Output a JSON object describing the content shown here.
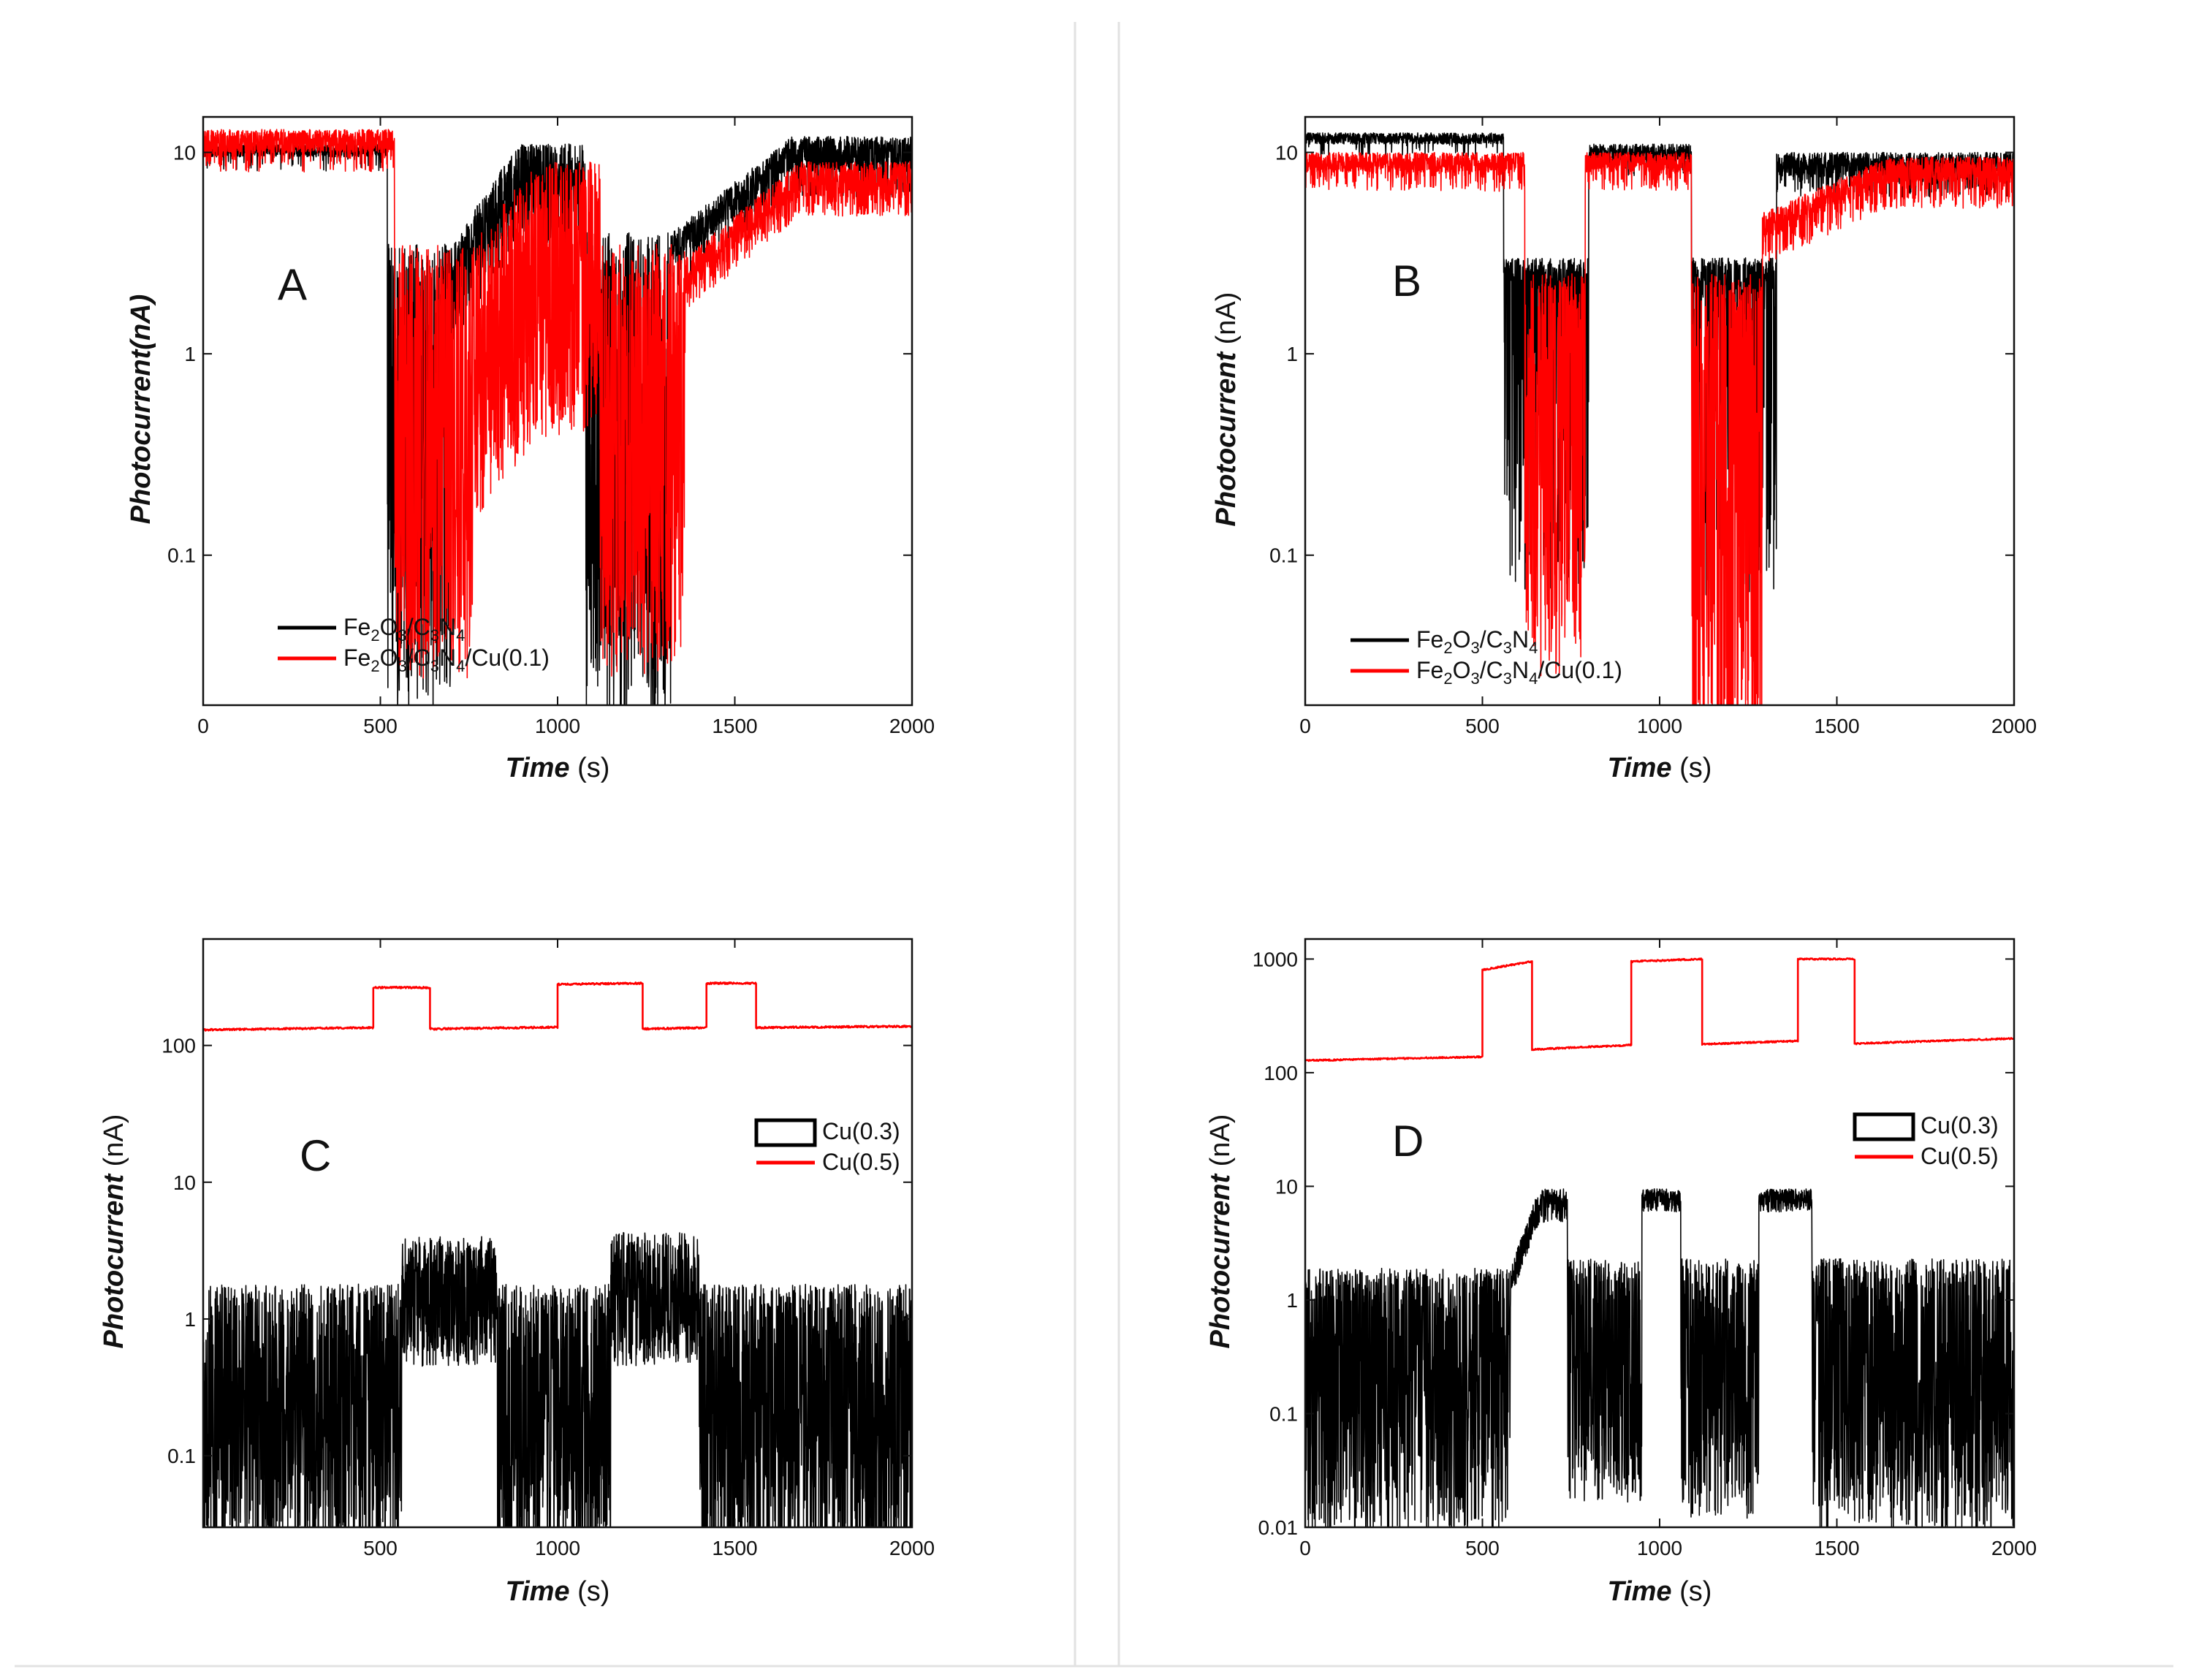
{
  "figure": {
    "panels": [
      "A",
      "B",
      "C",
      "D"
    ]
  },
  "chart_data": [
    {
      "panel": "A",
      "type": "line",
      "title": "",
      "xlabel": "Time",
      "xunit": "(s)",
      "ylabel": "Photocurrent(nA)",
      "yscale": "log",
      "xlim": [
        0,
        2000
      ],
      "ylim": [
        0.018,
        15
      ],
      "xticks": [
        0,
        500,
        1000,
        1500,
        2000
      ],
      "yticks": [
        0.1,
        1,
        10
      ],
      "ytick_labels": [
        "0.1",
        "1",
        "10"
      ],
      "legend_position": "bottom-left",
      "legend": [
        {
          "name": "Fe2O3/C3N4",
          "parts": [
            [
              "Fe",
              ""
            ],
            [
              "2",
              "sub"
            ],
            [
              "O",
              ""
            ],
            [
              "3",
              "sub"
            ],
            [
              "/C",
              ""
            ],
            [
              "3",
              "sub"
            ],
            [
              "N",
              ""
            ],
            [
              "4",
              "sub"
            ]
          ],
          "color": "#000000"
        },
        {
          "name": "Fe2O3/C3N4/Cu(0.1)",
          "parts": [
            [
              "Fe",
              ""
            ],
            [
              "2",
              "sub"
            ],
            [
              "O",
              ""
            ],
            [
              "3",
              "sub"
            ],
            [
              "/C",
              ""
            ],
            [
              "3",
              "sub"
            ],
            [
              "N",
              ""
            ],
            [
              "4",
              "sub"
            ],
            [
              "/Cu(0.1)",
              ""
            ]
          ],
          "color": "#ff0000"
        }
      ],
      "series": [
        {
          "name": "Fe2O3/C3N4",
          "color": "#000000",
          "seed": 11,
          "segments": [
            {
              "x0": 0,
              "x1": 520,
              "hi": 11,
              "lo": 9.5,
              "depth": 0.85,
              "p": 0.05
            },
            {
              "x0": 520,
              "x1": 700,
              "hi": 3.5,
              "lo": 0.25,
              "depth": 0.07,
              "p": 0.55
            },
            {
              "x0": 700,
              "x1": 1080,
              "hi": 11,
              "lo": 5,
              "depth": 0.7,
              "p": 0.2,
              "ramp": [
                3.5,
                11
              ]
            },
            {
              "x0": 1080,
              "x1": 1320,
              "hi": 4,
              "lo": 0.5,
              "depth": 0.03,
              "p": 0.55
            },
            {
              "x0": 1320,
              "x1": 2000,
              "hi": 12,
              "lo": 8,
              "depth": 0.75,
              "p": 0.15,
              "ramp": [
                4,
                12
              ]
            }
          ]
        },
        {
          "name": "Fe2O3/C3N4/Cu(0.1)",
          "color": "#ff0000",
          "seed": 23,
          "segments": [
            {
              "x0": 0,
              "x1": 540,
              "hi": 13,
              "lo": 10,
              "depth": 0.8,
              "p": 0.12
            },
            {
              "x0": 540,
              "x1": 760,
              "hi": 3.5,
              "lo": 0.4,
              "depth": 0.06,
              "p": 0.55
            },
            {
              "x0": 760,
              "x1": 1120,
              "hi": 9,
              "lo": 1.5,
              "depth": 0.25,
              "p": 0.45,
              "ramp": [
                3.5,
                9
              ]
            },
            {
              "x0": 1120,
              "x1": 1360,
              "hi": 3.5,
              "lo": 0.5,
              "depth": 0.05,
              "p": 0.55
            },
            {
              "x0": 1360,
              "x1": 2000,
              "hi": 9,
              "lo": 6,
              "depth": 0.8,
              "p": 0.2,
              "ramp": [
                3,
                9
              ]
            }
          ]
        }
      ]
    },
    {
      "panel": "B",
      "type": "line",
      "title": "",
      "xlabel": "Time",
      "xunit": "(s)",
      "ylabel": "Photocurrent",
      "yunit": "(nA)",
      "yscale": "log",
      "xlim": [
        0,
        2000
      ],
      "ylim": [
        0.018,
        15
      ],
      "xticks": [
        0,
        500,
        1000,
        1500,
        2000
      ],
      "yticks": [
        0.1,
        1,
        10
      ],
      "ytick_labels": [
        "0.1",
        "1",
        "10"
      ],
      "legend_position": "bottom-left",
      "legend": [
        {
          "name": "Fe2O3/C3N4",
          "parts": [
            [
              "Fe",
              ""
            ],
            [
              "2",
              "sub"
            ],
            [
              "O",
              ""
            ],
            [
              "3",
              "sub"
            ],
            [
              "/C",
              ""
            ],
            [
              "3",
              "sub"
            ],
            [
              "N",
              ""
            ],
            [
              "4",
              "sub"
            ]
          ],
          "color": "#000000"
        },
        {
          "name": "Fe2O3/C3N4/Cu(0.1)",
          "parts": [
            [
              "Fe",
              ""
            ],
            [
              "2",
              "sub"
            ],
            [
              "O",
              ""
            ],
            [
              "3",
              "sub"
            ],
            [
              "/C",
              ""
            ],
            [
              "3",
              "sub"
            ],
            [
              "N",
              ""
            ],
            [
              "4",
              "sub"
            ],
            [
              "/Cu(0.1)",
              ""
            ]
          ],
          "color": "#ff0000"
        }
      ],
      "series": [
        {
          "name": "Fe2O3/C3N4",
          "color": "#000000",
          "seed": 37,
          "segments": [
            {
              "x0": 0,
              "x1": 560,
              "hi": 12.5,
              "lo": 11,
              "depth": 0.85,
              "p": 0.05
            },
            {
              "x0": 560,
              "x1": 800,
              "hi": 3,
              "lo": 2.2,
              "depth": 0.03,
              "p": 0.35
            },
            {
              "x0": 800,
              "x1": 1090,
              "hi": 11,
              "lo": 9,
              "depth": 0.85,
              "p": 0.05
            },
            {
              "x0": 1090,
              "x1": 1330,
              "hi": 3,
              "lo": 2,
              "depth": 0.03,
              "p": 0.35
            },
            {
              "x0": 1330,
              "x1": 2000,
              "hi": 10,
              "lo": 7.5,
              "depth": 0.8,
              "p": 0.15
            }
          ]
        },
        {
          "name": "Fe2O3/C3N4/Cu(0.1)",
          "color": "#ff0000",
          "seed": 41,
          "segments": [
            {
              "x0": 0,
              "x1": 620,
              "hi": 10,
              "lo": 8,
              "depth": 0.8,
              "p": 0.15
            },
            {
              "x0": 620,
              "x1": 790,
              "hi": 2.5,
              "lo": 0.5,
              "depth": 0.05,
              "p": 0.5
            },
            {
              "x0": 790,
              "x1": 1090,
              "hi": 10,
              "lo": 8,
              "depth": 0.8,
              "p": 0.12
            },
            {
              "x0": 1090,
              "x1": 1290,
              "hi": 2.5,
              "lo": 0.3,
              "depth": 0.02,
              "p": 0.5
            },
            {
              "x0": 1290,
              "x1": 2000,
              "hi": 9.5,
              "lo": 7,
              "depth": 0.75,
              "p": 0.2,
              "ramp": [
                5,
                9.5
              ]
            }
          ]
        }
      ]
    },
    {
      "panel": "C",
      "type": "line",
      "title": "",
      "xlabel": "Time",
      "xunit": "(s)",
      "ylabel": "Photocurrent",
      "yunit": "(nA)",
      "yscale": "log",
      "xlim": [
        0,
        2000
      ],
      "ylim": [
        0.03,
        600
      ],
      "xticks": [
        500,
        1000,
        1500,
        2000
      ],
      "yticks": [
        0.1,
        1,
        10,
        100
      ],
      "ytick_labels": [
        "0.1",
        "1",
        "10",
        "100"
      ],
      "legend_position": "right",
      "legend": [
        {
          "name": "Cu(0.3)",
          "parts": [
            [
              "Cu(0.3)",
              ""
            ]
          ],
          "color": "#000000",
          "style": "box"
        },
        {
          "name": "Cu(0.5)",
          "parts": [
            [
              "Cu(0.5)",
              ""
            ]
          ],
          "color": "#ff0000"
        }
      ],
      "series": [
        {
          "name": "Cu(0.3)",
          "color": "#000000",
          "seed": 53,
          "segments": [
            {
              "x0": 0,
              "x1": 560,
              "hi": 1.8,
              "lo": 0.3,
              "depth": 0.05,
              "p": 0.55
            },
            {
              "x0": 560,
              "x1": 830,
              "hi": 4,
              "lo": 1.5,
              "depth": 0.3,
              "p": 0.5
            },
            {
              "x0": 830,
              "x1": 1150,
              "hi": 1.8,
              "lo": 0.3,
              "depth": 0.05,
              "p": 0.55
            },
            {
              "x0": 1150,
              "x1": 1400,
              "hi": 4.3,
              "lo": 1.5,
              "depth": 0.3,
              "p": 0.5
            },
            {
              "x0": 1400,
              "x1": 2000,
              "hi": 1.8,
              "lo": 0.3,
              "depth": 0.04,
              "p": 0.55
            }
          ]
        },
        {
          "name": "Cu(0.5)",
          "color": "#ff0000",
          "seed": 61,
          "smooth": true,
          "steps": [
            {
              "x0": 0,
              "x1": 480,
              "v0": 130,
              "v1": 135
            },
            {
              "x0": 480,
              "x1": 640,
              "v0": 265,
              "v1": 265
            },
            {
              "x0": 640,
              "x1": 1000,
              "v0": 132,
              "v1": 136
            },
            {
              "x0": 1000,
              "x1": 1240,
              "v0": 280,
              "v1": 285
            },
            {
              "x0": 1240,
              "x1": 1420,
              "v0": 132,
              "v1": 135
            },
            {
              "x0": 1420,
              "x1": 1560,
              "v0": 285,
              "v1": 285
            },
            {
              "x0": 1560,
              "x1": 2000,
              "v0": 135,
              "v1": 138
            }
          ]
        }
      ]
    },
    {
      "panel": "D",
      "type": "line",
      "title": "",
      "xlabel": "Time",
      "xunit": "(s)",
      "ylabel": "Photocurrent",
      "yunit": "(nA)",
      "yscale": "log",
      "xlim": [
        0,
        2000
      ],
      "ylim": [
        0.01,
        1500
      ],
      "xticks": [
        0,
        500,
        1000,
        1500,
        2000
      ],
      "yticks": [
        0.01,
        0.1,
        1,
        10,
        100,
        1000
      ],
      "ytick_labels": [
        "0.01",
        "0.1",
        "1",
        "10",
        "100",
        "1000"
      ],
      "legend_position": "right",
      "legend": [
        {
          "name": "Cu(0.3)",
          "parts": [
            [
              "Cu(0.3)",
              ""
            ]
          ],
          "color": "#000000",
          "style": "box"
        },
        {
          "name": "Cu(0.5)",
          "parts": [
            [
              "Cu(0.5)",
              ""
            ]
          ],
          "color": "#ff0000"
        }
      ],
      "series": [
        {
          "name": "Cu(0.3)",
          "color": "#000000",
          "seed": 71,
          "segments": [
            {
              "x0": 0,
              "x1": 580,
              "hi": 1.9,
              "lo": 0.3,
              "depth": 0.03,
              "p": 0.55
            },
            {
              "x0": 580,
              "x1": 740,
              "hi": 9.5,
              "lo": 6,
              "depth": 0.8,
              "p": 0.3,
              "ramp": [
                2,
                9.5
              ]
            },
            {
              "x0": 740,
              "x1": 950,
              "hi": 2.3,
              "lo": 0.4,
              "depth": 0.04,
              "p": 0.55
            },
            {
              "x0": 950,
              "x1": 1060,
              "hi": 9.5,
              "lo": 7,
              "depth": 0.85,
              "p": 0.2
            },
            {
              "x0": 1060,
              "x1": 1280,
              "hi": 2.3,
              "lo": 0.4,
              "depth": 0.03,
              "p": 0.55
            },
            {
              "x0": 1280,
              "x1": 1430,
              "hi": 9.5,
              "lo": 7,
              "depth": 0.85,
              "p": 0.2
            },
            {
              "x0": 1430,
              "x1": 2000,
              "hi": 2.3,
              "lo": 0.3,
              "depth": 0.03,
              "p": 0.55
            }
          ]
        },
        {
          "name": "Cu(0.5)",
          "color": "#ff0000",
          "seed": 83,
          "smooth": true,
          "steps": [
            {
              "x0": 0,
              "x1": 500,
              "v0": 128,
              "v1": 138
            },
            {
              "x0": 500,
              "x1": 640,
              "v0": 800,
              "v1": 950
            },
            {
              "x0": 640,
              "x1": 920,
              "v0": 160,
              "v1": 175
            },
            {
              "x0": 920,
              "x1": 1120,
              "v0": 950,
              "v1": 1000
            },
            {
              "x0": 1120,
              "x1": 1390,
              "v0": 178,
              "v1": 190
            },
            {
              "x0": 1390,
              "x1": 1550,
              "v0": 1000,
              "v1": 1000
            },
            {
              "x0": 1550,
              "x1": 2000,
              "v0": 180,
              "v1": 200
            }
          ]
        }
      ]
    }
  ]
}
